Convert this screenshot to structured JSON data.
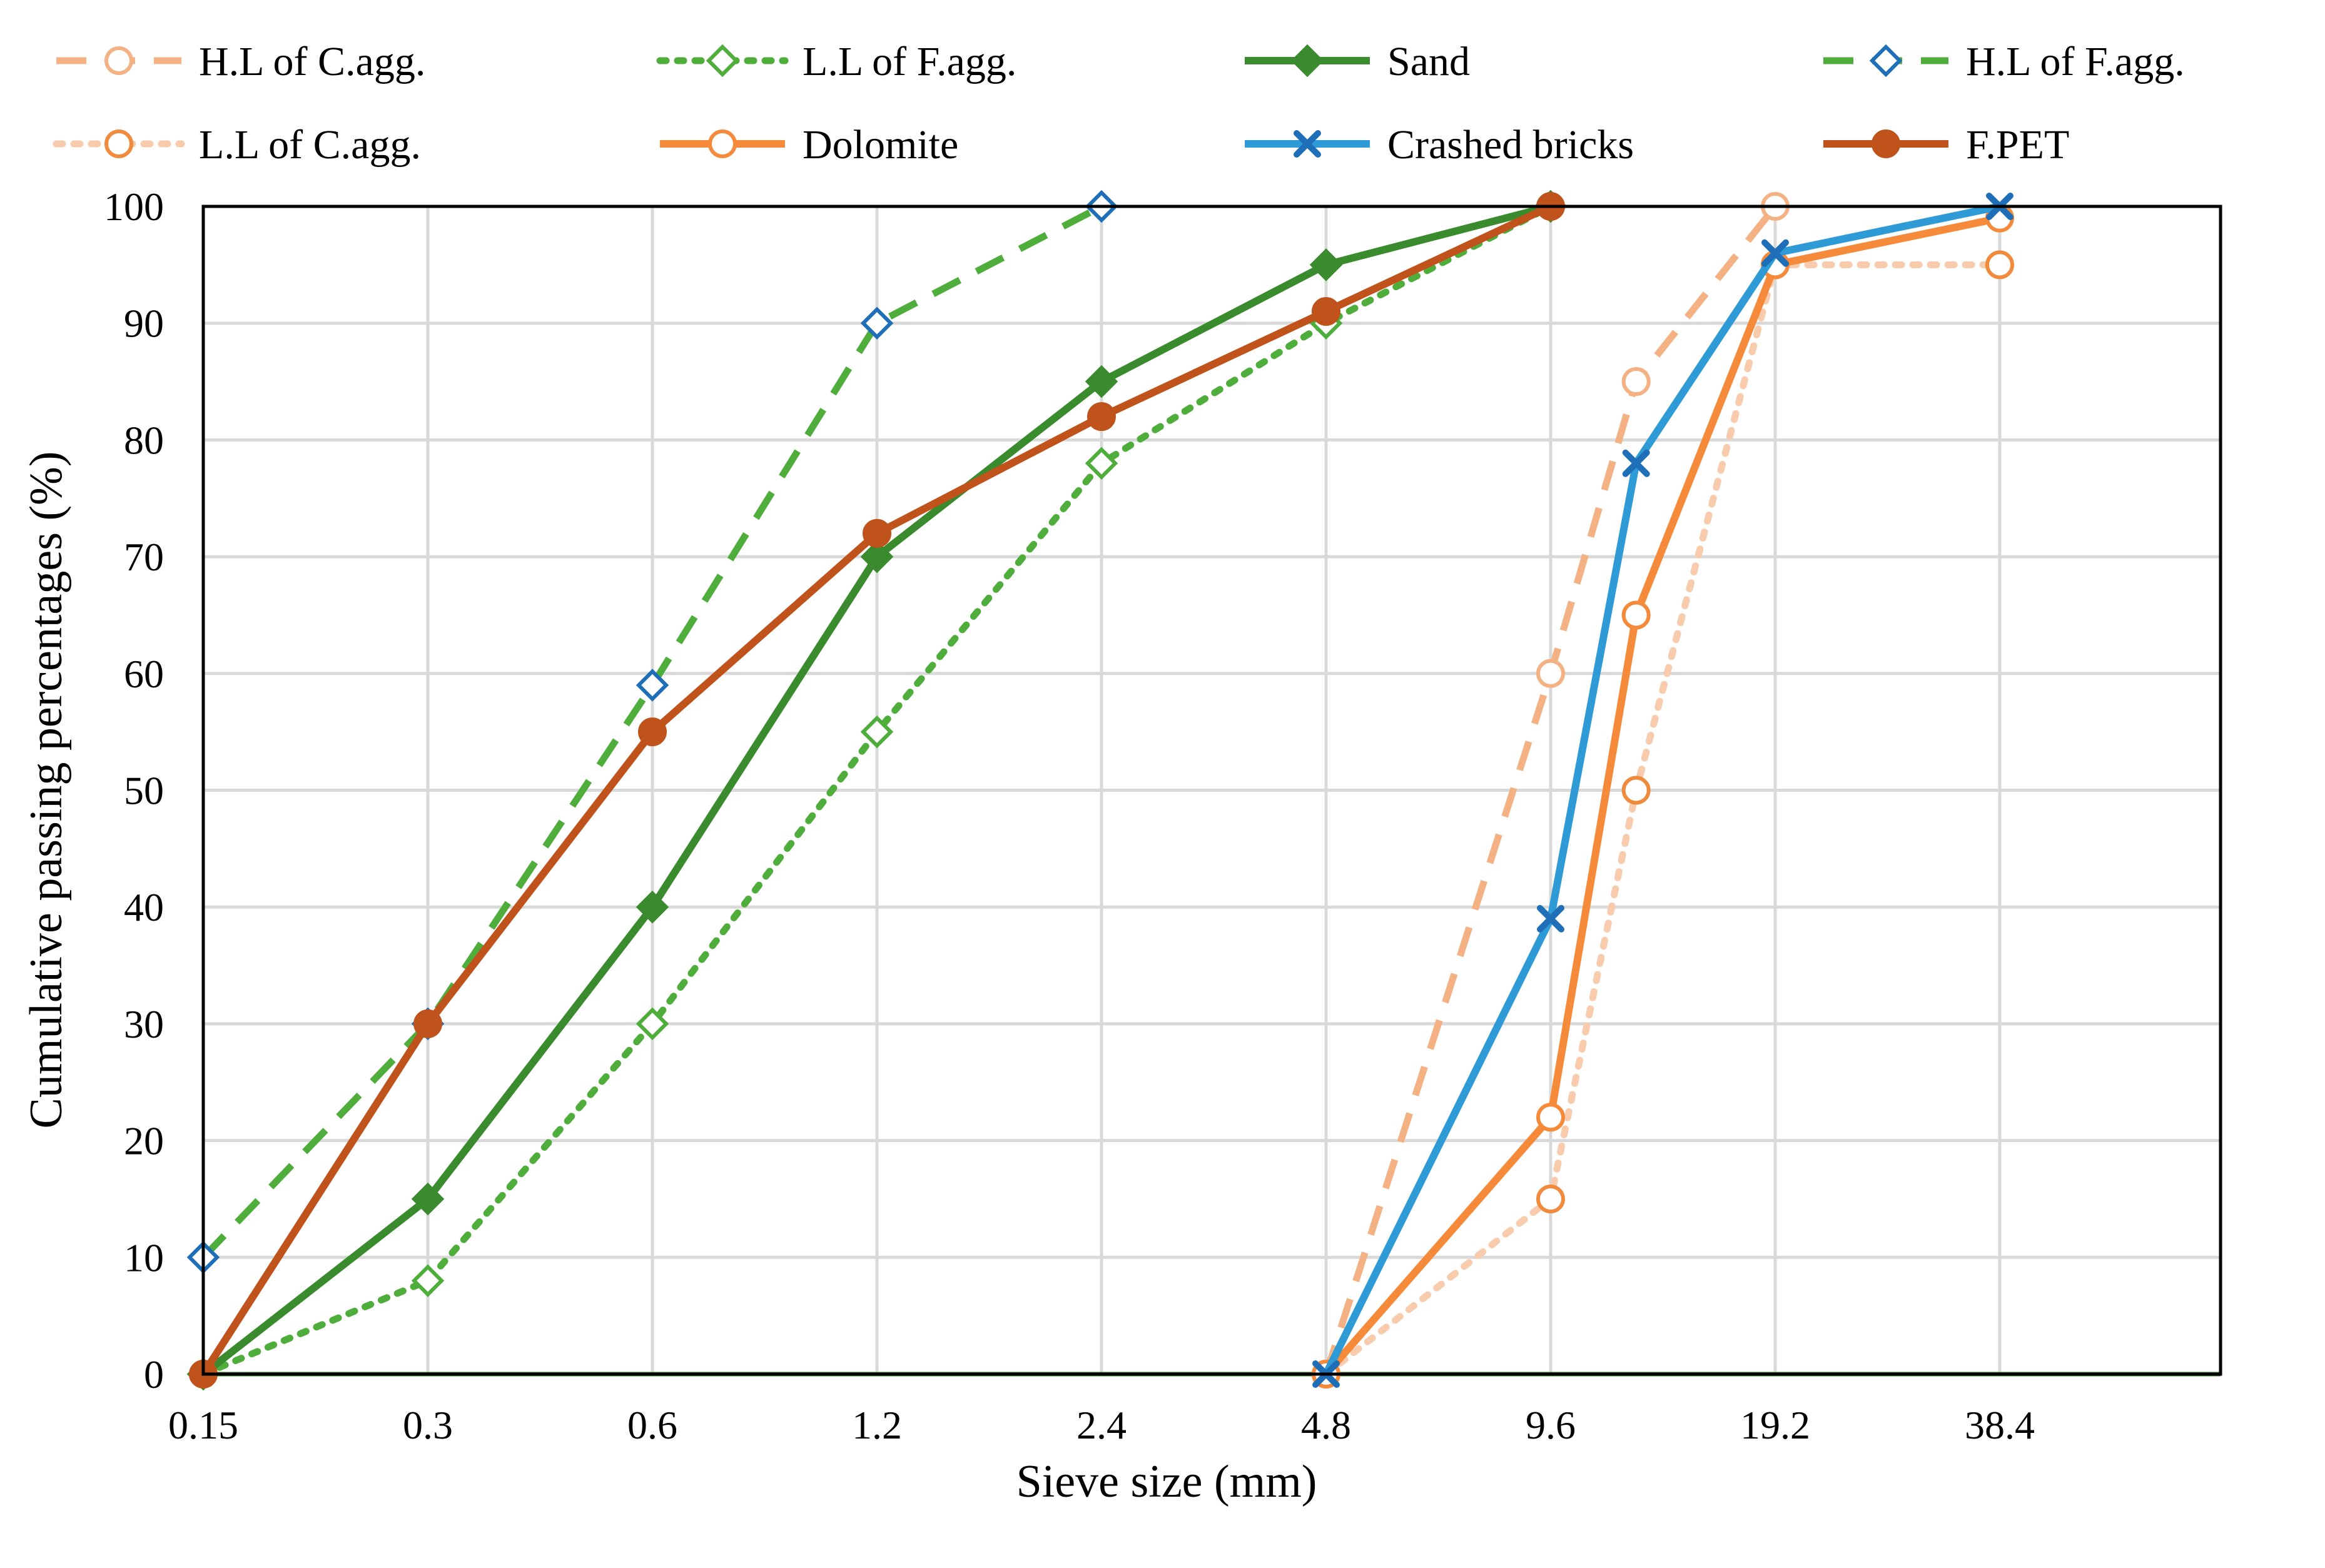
{
  "chart_data": {
    "type": "line",
    "title": "",
    "xlabel": "Sieve size (mm)",
    "ylabel": "Cumulative passing percentages (%)",
    "x_scale": "log2 sieve positions",
    "categories": [
      "0.15",
      "0.3",
      "0.6",
      "1.2",
      "2.4",
      "4.8",
      "9.6",
      "19.2",
      "38.4"
    ],
    "ylim": [
      0,
      100
    ],
    "yticks": [
      "0",
      "10",
      "20",
      "30",
      "40",
      "50",
      "60",
      "70",
      "80",
      "90",
      "100"
    ],
    "grid": true,
    "legend_position": "top",
    "series": [
      {
        "name": "H.L of C.agg.",
        "color": "#F4B183",
        "line": "dashed",
        "marker": "circle-open",
        "points": [
          [
            4.8,
            0
          ],
          [
            9.6,
            60
          ],
          [
            12.5,
            85
          ],
          [
            19.2,
            100
          ]
        ]
      },
      {
        "name": "L.L of F.agg.",
        "color": "#4EAD3B",
        "line": "dotted",
        "marker": "diamond-open",
        "points": [
          [
            0.15,
            0
          ],
          [
            0.3,
            8
          ],
          [
            0.6,
            30
          ],
          [
            1.2,
            55
          ],
          [
            2.4,
            78
          ],
          [
            4.8,
            90
          ],
          [
            9.6,
            100
          ]
        ]
      },
      {
        "name": "Sand",
        "color": "#3A8A2E",
        "line": "solid",
        "marker": "diamond-filled",
        "points": [
          [
            0.15,
            0
          ],
          [
            0.3,
            15
          ],
          [
            0.6,
            40
          ],
          [
            1.2,
            70
          ],
          [
            2.4,
            85
          ],
          [
            4.8,
            95
          ],
          [
            9.6,
            100
          ]
        ]
      },
      {
        "name": "H.L of F.agg.",
        "color": "#4EAD3B",
        "marker_color": "#1F6EB8",
        "line": "dashed",
        "marker": "diamond-open",
        "points": [
          [
            0.15,
            10
          ],
          [
            0.3,
            30
          ],
          [
            0.6,
            59
          ],
          [
            1.2,
            90
          ],
          [
            2.4,
            100
          ]
        ]
      },
      {
        "name": "L.L of C.agg.",
        "color": "#F8CBAD",
        "marker_color": "#F08A3C",
        "line": "dotted",
        "marker": "circle-open",
        "points": [
          [
            4.8,
            0
          ],
          [
            9.6,
            15
          ],
          [
            12.5,
            50
          ],
          [
            19.2,
            95
          ],
          [
            38.4,
            95
          ]
        ]
      },
      {
        "name": "Dolomite",
        "color": "#F58A3A",
        "line": "solid",
        "marker": "circle-open",
        "points": [
          [
            4.8,
            0
          ],
          [
            9.6,
            22
          ],
          [
            12.5,
            65
          ],
          [
            19.2,
            95
          ],
          [
            38.4,
            99
          ]
        ]
      },
      {
        "name": "Crashed bricks",
        "color": "#2E9BD6",
        "marker_color": "#1F6EB8",
        "line": "solid",
        "marker": "x",
        "points": [
          [
            4.8,
            0
          ],
          [
            9.6,
            39
          ],
          [
            12.5,
            78
          ],
          [
            19.2,
            96
          ],
          [
            38.4,
            100
          ]
        ]
      },
      {
        "name": "F.PET",
        "color": "#C0521B",
        "line": "solid",
        "marker": "circle-filled",
        "points": [
          [
            0.15,
            0
          ],
          [
            0.3,
            30
          ],
          [
            0.6,
            55
          ],
          [
            1.2,
            72
          ],
          [
            2.4,
            82
          ],
          [
            4.8,
            91
          ],
          [
            9.6,
            100
          ]
        ]
      }
    ]
  }
}
